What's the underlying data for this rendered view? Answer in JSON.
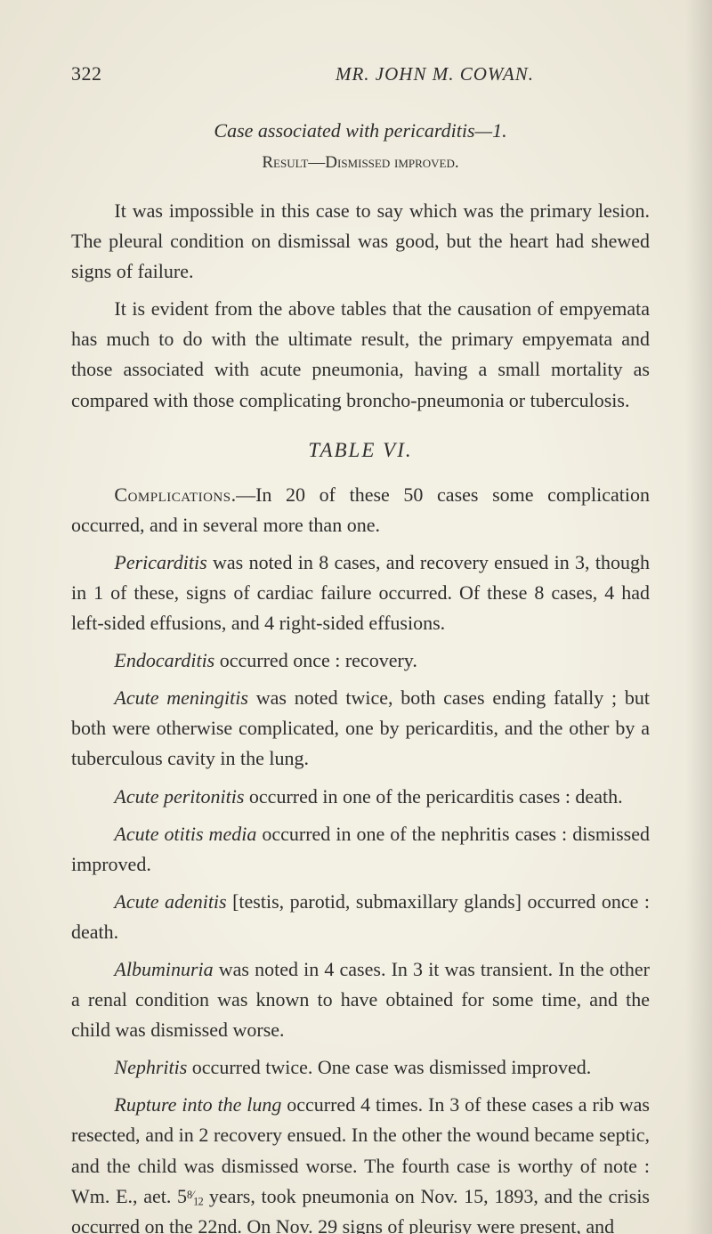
{
  "page": {
    "number": "322",
    "running_head": "MR. JOHN M. COWAN.",
    "background_color": "#f0ece0",
    "text_color": "#2e2e2e",
    "body_fontsize": 22,
    "line_height": 1.55
  },
  "case_line": "Case associated with pericarditis—1.",
  "result_line": "Result—Dismissed improved.",
  "para1": "It was impossible in this case to say which was the primary lesion. The pleural condition on dismissal was good, but the heart had shewed signs of failure.",
  "para2": "It is evident from the above tables that the causation of empyemata has much to do with the ultimate result, the primary empyemata and those associated with acute pneumonia, having a small mortality as compared with those complicating broncho-pneumonia or tuberculosis.",
  "table_title": "TABLE VI.",
  "complications_label": "Complications",
  "complications_rest": ".—In 20 of these 50 cases some complication occurred, and in several more than one.",
  "peri_label": "Pericarditis",
  "peri_rest": " was noted in 8 cases, and recovery ensued in 3, though in 1 of these, signs of cardiac failure occurred. Of these 8 cases, 4 had left-sided effusions, and 4 right-sided effusions.",
  "endo_label": "Endocarditis",
  "endo_rest": " occurred once : recovery.",
  "mening_label": "Acute meningitis",
  "mening_rest": " was noted twice, both cases ending fatally ; but both were otherwise complicated, one by pericarditis, and the other by a tuberculous cavity in the lung.",
  "periton_label": "Acute peritonitis",
  "periton_rest": " occurred in one of the pericarditis cases : death.",
  "otitis_label": "Acute otitis media",
  "otitis_rest": " occurred in one of the nephritis cases : dismissed improved.",
  "aden_label": "Acute adenitis",
  "aden_rest": " [testis, parotid, submaxillary glands] occurred once : death.",
  "album_label": "Albuminuria",
  "album_rest": " was noted in 4 cases. In 3 it was transient. In the other a renal condition was known to have obtained for some time, and the child was dismissed worse.",
  "neph_label": "Nephritis",
  "neph_rest": " occurred twice. One case was dismissed im­proved.",
  "rupt_label": "Rupture into the lung",
  "rupt_rest_a": " occurred 4 times. In 3 of these cases a rib was resected, and in 2 recovery ensued. In the other the wound became septic, and the child was dismissed worse. The fourth case is worthy of note : Wm. E., aet. 5",
  "rupt_frac_num": "8",
  "rupt_frac_den": "12",
  "rupt_rest_b": " years, took pneumonia on Nov. 15, 1893, and the crisis occurred on the 22nd. On Nov. 29 signs of pleurisy were present, and"
}
